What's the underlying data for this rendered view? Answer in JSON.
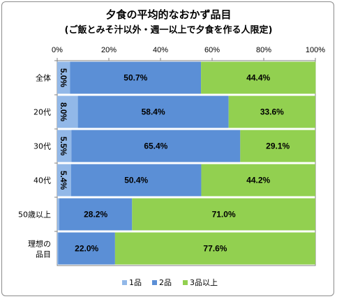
{
  "chart_data": {
    "type": "bar",
    "orientation": "horizontal",
    "stacked": "percent",
    "title": "夕食の平均的なおかず品目",
    "subtitle": "(ご飯とみそ汁以外・週一以上で夕食を作る人限定)",
    "categories": [
      "全体",
      "20代",
      "30代",
      "40代",
      "50歳以上",
      "理想の品目"
    ],
    "series": [
      {
        "name": "1品",
        "color": "#92b8e8",
        "values": [
          5.0,
          8.0,
          5.5,
          5.4,
          0.8,
          0.4
        ]
      },
      {
        "name": "2品",
        "color": "#5b8fd6",
        "values": [
          50.7,
          58.4,
          65.4,
          50.4,
          28.2,
          22.0
        ]
      },
      {
        "name": "3品以上",
        "color": "#92d050",
        "values": [
          44.4,
          33.6,
          29.1,
          44.2,
          71.0,
          77.6
        ]
      }
    ],
    "xticks": [
      "0%",
      "20%",
      "40%",
      "60%",
      "80%",
      "100%"
    ],
    "xlim": [
      0,
      100
    ],
    "grid": false,
    "legend_position": "bottom"
  }
}
